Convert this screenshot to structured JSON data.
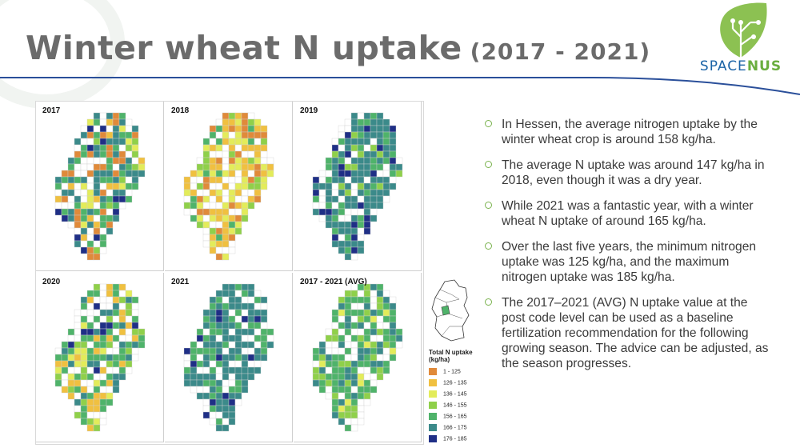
{
  "slide": {
    "title_main": "Winter wheat N uptake",
    "title_years": "(2017 - 2021)",
    "logo_part1": "SPACE",
    "logo_part2": "NUS"
  },
  "maps": [
    {
      "label": "2017"
    },
    {
      "label": "2018"
    },
    {
      "label": "2019"
    },
    {
      "label": "2020"
    },
    {
      "label": "2021"
    },
    {
      "label": "2017 - 2021 (AVG)"
    }
  ],
  "legend": {
    "title": "Total N uptake (kg/ha)",
    "classes": [
      {
        "label": "1 - 125",
        "color": "#e08a3a"
      },
      {
        "label": "126 - 135",
        "color": "#f0c040"
      },
      {
        "label": "136 - 145",
        "color": "#e3ec5a"
      },
      {
        "label": "146 - 155",
        "color": "#8fd04a"
      },
      {
        "label": "156 - 165",
        "color": "#4fb36a"
      },
      {
        "label": "166 - 175",
        "color": "#3b8a8a"
      },
      {
        "label": "176 - 185",
        "color": "#1f2f86"
      }
    ]
  },
  "bullets": [
    "In Hessen, the average nitrogen uptake by the winter wheat crop is around 158 kg/ha.",
    "The average N uptake was around 147 kg/ha in 2018, even though it was a dry year.",
    "While 2021 was a fantastic year, with a winter wheat N uptake of around 165 kg/ha.",
    "Over the last five years, the minimum nitrogen uptake was 125 kg/ha, and the maximum nitrogen uptake was 185 kg/ha.",
    "The 2017–2021 (AVG) N uptake value at the post code level can be used as a baseline fertilization recommendation for the following growing season. The advice can be adjusted, as the season progresses."
  ],
  "accent_color": "#1b63a6",
  "brand_green": "#6aae3f"
}
